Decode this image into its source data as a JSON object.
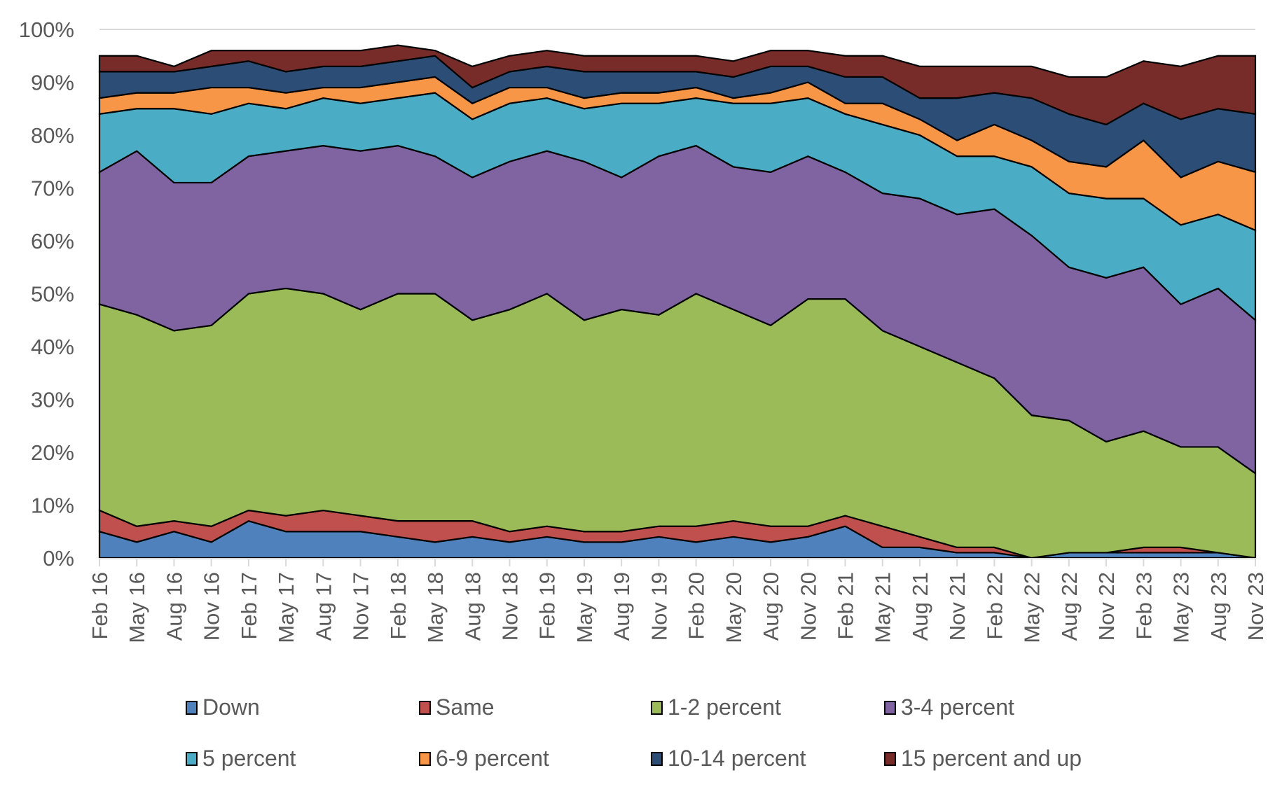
{
  "chart_data": {
    "type": "area",
    "stacked": true,
    "title": "",
    "xlabel": "",
    "ylabel": "",
    "ylim": [
      0,
      100
    ],
    "y_ticks": [
      "0%",
      "10%",
      "20%",
      "30%",
      "40%",
      "50%",
      "60%",
      "70%",
      "80%",
      "90%",
      "100%"
    ],
    "y_tick_values": [
      0,
      10,
      20,
      30,
      40,
      50,
      60,
      70,
      80,
      90,
      100
    ],
    "grid": "horizontal 100% line only",
    "legend_position": "bottom",
    "categories": [
      "Feb 16",
      "May 16",
      "Aug 16",
      "Nov 16",
      "Feb 17",
      "May 17",
      "Aug 17",
      "Nov 17",
      "Feb 18",
      "May 18",
      "Aug 18",
      "Nov 18",
      "Feb 19",
      "May 19",
      "Aug 19",
      "Nov 19",
      "Feb 20",
      "May 20",
      "Aug 20",
      "Nov 20",
      "Feb 21",
      "May 21",
      "Aug 21",
      "Nov 21",
      "Feb 22",
      "May 22",
      "Aug 22",
      "Nov 22",
      "Feb 23",
      "May 23",
      "Aug 23",
      "Nov 23"
    ],
    "series": [
      {
        "name": "Down",
        "color": "#4F81BD",
        "values": [
          5,
          3,
          5,
          3,
          7,
          5,
          5,
          5,
          4,
          3,
          4,
          3,
          4,
          3,
          3,
          4,
          3,
          4,
          3,
          4,
          6,
          2,
          2,
          1,
          1,
          0,
          1,
          1,
          1,
          1,
          1,
          0
        ]
      },
      {
        "name": "Same",
        "color": "#C0504D",
        "values": [
          4,
          3,
          2,
          3,
          2,
          3,
          4,
          3,
          3,
          4,
          3,
          2,
          2,
          2,
          2,
          2,
          3,
          3,
          3,
          2,
          2,
          4,
          2,
          1,
          1,
          0,
          0,
          0,
          1,
          1,
          0,
          0
        ]
      },
      {
        "name": "1-2 percent",
        "color": "#9BBB59",
        "values": [
          39,
          40,
          36,
          38,
          41,
          43,
          41,
          39,
          43,
          43,
          38,
          42,
          44,
          40,
          42,
          40,
          44,
          40,
          38,
          43,
          41,
          37,
          36,
          35,
          32,
          27,
          25,
          21,
          22,
          19,
          20,
          16
        ]
      },
      {
        "name": "3-4 percent",
        "color": "#8064A2",
        "values": [
          25,
          31,
          28,
          27,
          26,
          26,
          28,
          30,
          28,
          26,
          27,
          28,
          27,
          30,
          25,
          30,
          28,
          27,
          29,
          27,
          24,
          26,
          28,
          28,
          32,
          34,
          29,
          31,
          31,
          27,
          30,
          29
        ]
      },
      {
        "name": "5 percent",
        "color": "#4BACC6",
        "values": [
          11,
          8,
          14,
          13,
          10,
          8,
          9,
          9,
          9,
          12,
          11,
          11,
          10,
          10,
          14,
          10,
          9,
          12,
          13,
          11,
          11,
          13,
          12,
          11,
          10,
          13,
          14,
          15,
          13,
          15,
          14,
          17
        ]
      },
      {
        "name": "6-9 percent",
        "color": "#F79646",
        "values": [
          3,
          3,
          3,
          5,
          3,
          3,
          2,
          3,
          3,
          3,
          3,
          3,
          2,
          2,
          2,
          2,
          2,
          1,
          2,
          3,
          2,
          4,
          3,
          3,
          6,
          5,
          6,
          6,
          11,
          9,
          10,
          11
        ]
      },
      {
        "name": "10-14 percent",
        "color": "#2C4D75",
        "values": [
          5,
          4,
          4,
          4,
          5,
          4,
          4,
          4,
          4,
          4,
          3,
          3,
          4,
          5,
          4,
          4,
          3,
          4,
          5,
          3,
          5,
          5,
          4,
          8,
          6,
          8,
          9,
          8,
          7,
          11,
          10,
          11
        ]
      },
      {
        "name": "15 percent and up",
        "color": "#772C2A",
        "values": [
          3,
          3,
          1,
          3,
          2,
          4,
          3,
          3,
          3,
          1,
          4,
          3,
          3,
          3,
          3,
          3,
          3,
          3,
          3,
          3,
          4,
          4,
          6,
          6,
          5,
          6,
          7,
          9,
          8,
          10,
          10,
          11
        ]
      }
    ]
  },
  "legend": {
    "items": [
      {
        "label": "Down",
        "color": "#4F81BD"
      },
      {
        "label": "Same",
        "color": "#C0504D"
      },
      {
        "label": "1-2 percent",
        "color": "#9BBB59"
      },
      {
        "label": "3-4 percent",
        "color": "#8064A2"
      },
      {
        "label": "5 percent",
        "color": "#4BACC6"
      },
      {
        "label": "6-9 percent",
        "color": "#F79646"
      },
      {
        "label": "10-14 percent",
        "color": "#2C4D75"
      },
      {
        "label": "15 percent and up",
        "color": "#772C2A"
      }
    ]
  }
}
